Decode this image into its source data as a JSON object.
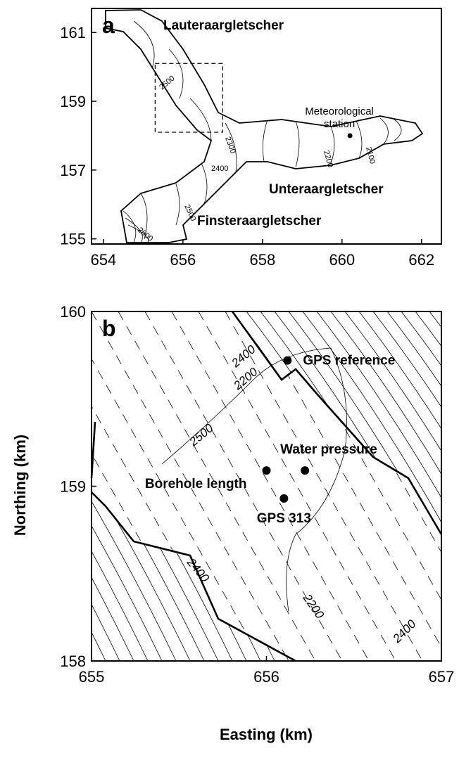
{
  "panel_a": {
    "label": "a",
    "xlim": [
      653.7,
      662.5
    ],
    "ylim": [
      154.85,
      161.7
    ],
    "xticks": [
      654,
      656,
      658,
      660,
      662
    ],
    "yticks": [
      155,
      157,
      159,
      161
    ],
    "inset_xlim": [
      655.3,
      657
    ],
    "inset_ylim": [
      158.1,
      160.1
    ],
    "glaciers": [
      "Lauteraargletscher",
      "Unteraargletscher",
      "Finsteraargletscher"
    ],
    "station": {
      "label": [
        "Meteorological",
        "station"
      ],
      "easting": 660.2,
      "northing": 158.0
    },
    "contour_labels": [
      "2500",
      "2300",
      "2200",
      "2100",
      "2400",
      "2500",
      "2600"
    ]
  },
  "panel_b": {
    "label": "b",
    "xlim": [
      655,
      657
    ],
    "ylim": [
      158,
      160
    ],
    "xticks": [
      655,
      656,
      657
    ],
    "yticks": [
      158,
      159,
      160
    ],
    "sites": [
      {
        "name": "GPS reference",
        "easting": 656.12,
        "northing": 159.72
      },
      {
        "name": "Water pressure",
        "easting": 656.22,
        "northing": 159.09
      },
      {
        "name": "Borehole length",
        "easting": 656.0,
        "northing": 159.09
      },
      {
        "name": "GPS 313",
        "easting": 656.1,
        "northing": 158.93
      }
    ],
    "contour_labels": [
      "2400",
      "2200",
      "2500",
      "2400",
      "2200",
      "2400"
    ]
  },
  "x_axis_label": "Easting (km)",
  "y_axis_label": "Northing (km)"
}
